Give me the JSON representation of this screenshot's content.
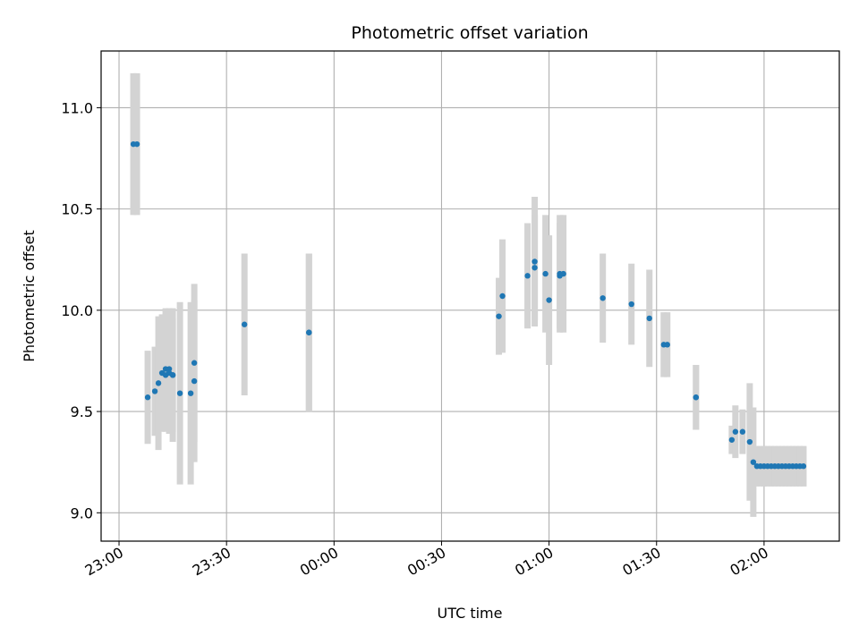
{
  "chart_data": {
    "type": "scatter",
    "title": "Photometric offset variation",
    "xlabel": "UTC time",
    "ylabel": "Photometric offset",
    "x_ticks": [
      "23:00",
      "23:30",
      "00:00",
      "00:30",
      "01:00",
      "01:30",
      "02:00"
    ],
    "y_ticks": [
      "9.0",
      "9.5",
      "10.0",
      "10.5",
      "11.0"
    ],
    "xlim": [
      "22:55",
      "02:21"
    ],
    "ylim": [
      8.86,
      11.28
    ],
    "grid": true,
    "colors": {
      "point": "#1f77b4",
      "errorbar": "#d3d3d3",
      "grid": "#b0b0b0",
      "axes": "#000000"
    },
    "series": [
      {
        "x": [
          "23:04",
          "23:05",
          "23:08",
          "23:10",
          "23:11",
          "23:12",
          "23:13",
          "23:13",
          "23:14",
          "23:14",
          "23:15",
          "23:15",
          "23:17",
          "23:20",
          "23:21",
          "23:21",
          "23:35",
          "23:53",
          "23:53",
          "00:46",
          "00:47",
          "00:54",
          "00:56",
          "00:56",
          "00:59",
          "01:00",
          "01:03",
          "01:03",
          "01:04",
          "01:15",
          "01:23",
          "01:28",
          "01:32",
          "01:33",
          "01:41",
          "01:41",
          "01:51",
          "01:52",
          "01:54",
          "01:56",
          "01:57",
          "01:58",
          "01:59",
          "02:00",
          "02:01",
          "02:02",
          "02:03",
          "02:04",
          "02:05",
          "02:06",
          "02:07",
          "02:08",
          "02:09",
          "02:10",
          "02:11"
        ],
        "y": [
          10.82,
          10.82,
          9.57,
          9.6,
          9.64,
          9.69,
          9.71,
          9.68,
          9.71,
          9.69,
          9.68,
          9.68,
          9.59,
          9.59,
          9.65,
          9.74,
          9.93,
          9.89,
          9.89,
          9.97,
          10.07,
          10.17,
          10.21,
          10.24,
          10.18,
          10.05,
          10.17,
          10.18,
          10.18,
          10.06,
          10.03,
          9.96,
          9.83,
          9.83,
          9.57,
          9.57,
          9.36,
          9.4,
          9.4,
          9.35,
          9.25,
          9.23,
          9.23,
          9.23,
          9.23,
          9.23,
          9.23,
          9.23,
          9.23,
          9.23,
          9.23,
          9.23,
          9.23,
          9.23,
          9.23
        ],
        "yerr": [
          0.35,
          0.35,
          0.23,
          0.22,
          0.33,
          0.29,
          0.3,
          0.28,
          0.3,
          0.3,
          0.28,
          0.33,
          0.45,
          0.45,
          0.4,
          0.39,
          0.35,
          0.39,
          0.39,
          0.19,
          0.28,
          0.26,
          0.26,
          0.32,
          0.29,
          0.32,
          0.26,
          0.29,
          0.29,
          0.22,
          0.2,
          0.24,
          0.16,
          0.16,
          0.16,
          0.16,
          0.07,
          0.13,
          0.11,
          0.29,
          0.27,
          0.1,
          0.1,
          0.1,
          0.1,
          0.1,
          0.1,
          0.1,
          0.1,
          0.1,
          0.1,
          0.1,
          0.1,
          0.1,
          0.1
        ]
      }
    ]
  }
}
